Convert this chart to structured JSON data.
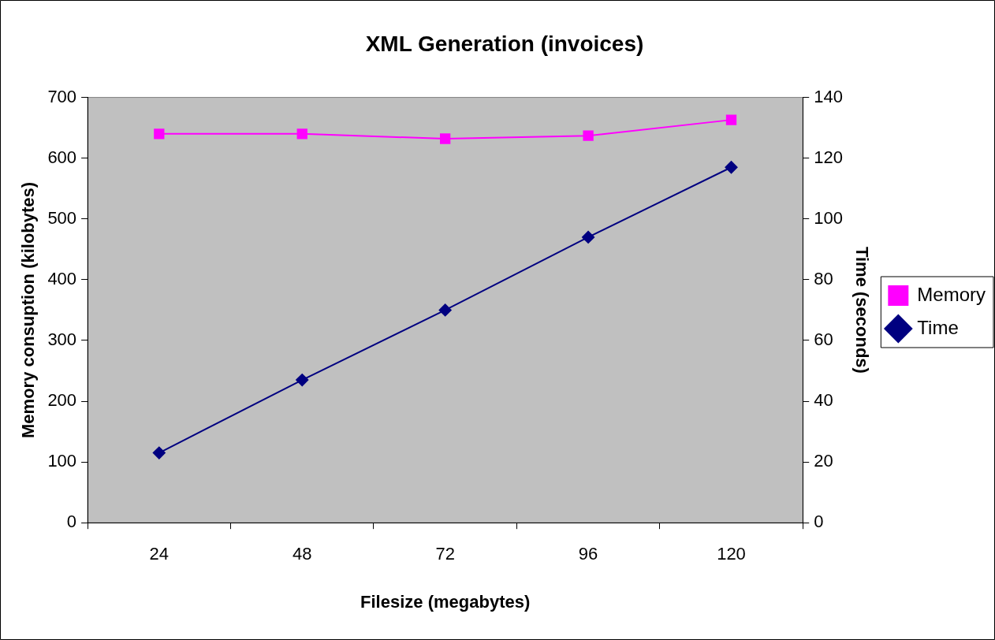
{
  "chart_data": {
    "type": "line",
    "title": "XML Generation (invoices)",
    "xlabel": "Filesize (megabytes)",
    "ylabel": "Memory consuption (kilobytes)",
    "y2label": "Time (seconds)",
    "categories": [
      "24",
      "48",
      "72",
      "96",
      "120"
    ],
    "series": [
      {
        "name": "Memory",
        "color": "#ff00ff",
        "marker": "square",
        "values": [
          640,
          640,
          632,
          637,
          663
        ]
      },
      {
        "name": "Time",
        "color": "#000080",
        "marker": "diamond",
        "axis": "y2",
        "values": [
          23,
          47,
          70,
          94,
          117
        ]
      }
    ],
    "ylim": [
      0,
      700
    ],
    "yticks": [
      0,
      100,
      200,
      300,
      400,
      500,
      600,
      700
    ],
    "y2lim": [
      0,
      140
    ],
    "y2ticks": [
      0,
      20,
      40,
      60,
      80,
      100,
      120,
      140
    ],
    "grid": false,
    "legend": "right"
  }
}
